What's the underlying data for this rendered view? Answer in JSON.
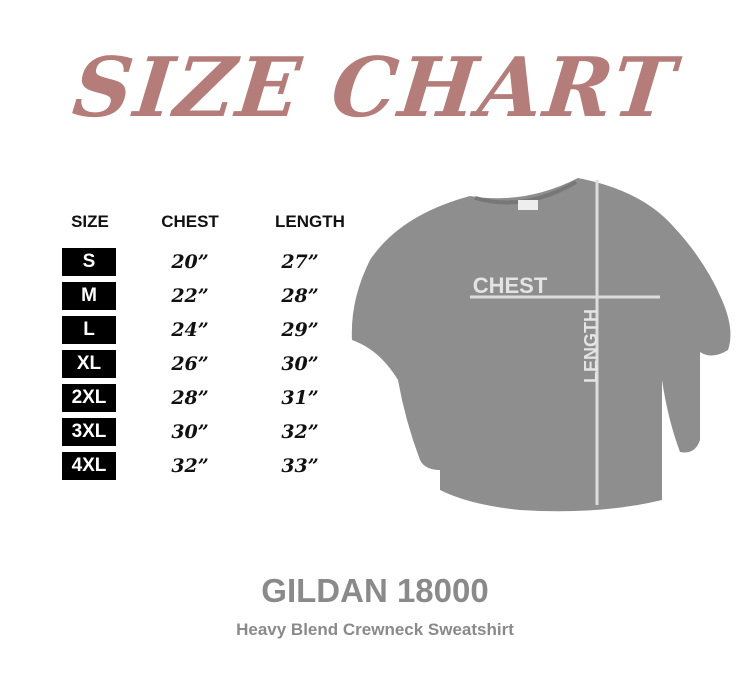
{
  "title": "SIZE CHART",
  "headers": {
    "size": "SIZE",
    "chest": "CHEST",
    "length": "LENGTH"
  },
  "rows": [
    {
      "size": "S",
      "chest": "20”",
      "length": "27”"
    },
    {
      "size": "M",
      "chest": "22”",
      "length": "28”"
    },
    {
      "size": "L",
      "chest": "24”",
      "length": "29”"
    },
    {
      "size": "XL",
      "chest": "26”",
      "length": "30”"
    },
    {
      "size": "2XL",
      "chest": "28”",
      "length": "31”"
    },
    {
      "size": "3XL",
      "chest": "30”",
      "length": "32”"
    },
    {
      "size": "4XL",
      "chest": "32”",
      "length": "33”"
    }
  ],
  "diagram": {
    "chest_label": "CHEST",
    "length_label": "LENGTH"
  },
  "brand": "GILDAN 18000",
  "product": "Heavy Blend Crewneck Sweatshirt",
  "colors": {
    "title": "#b57d7a",
    "shirt": "#8e8e8e",
    "footer": "#8a8a8a"
  }
}
